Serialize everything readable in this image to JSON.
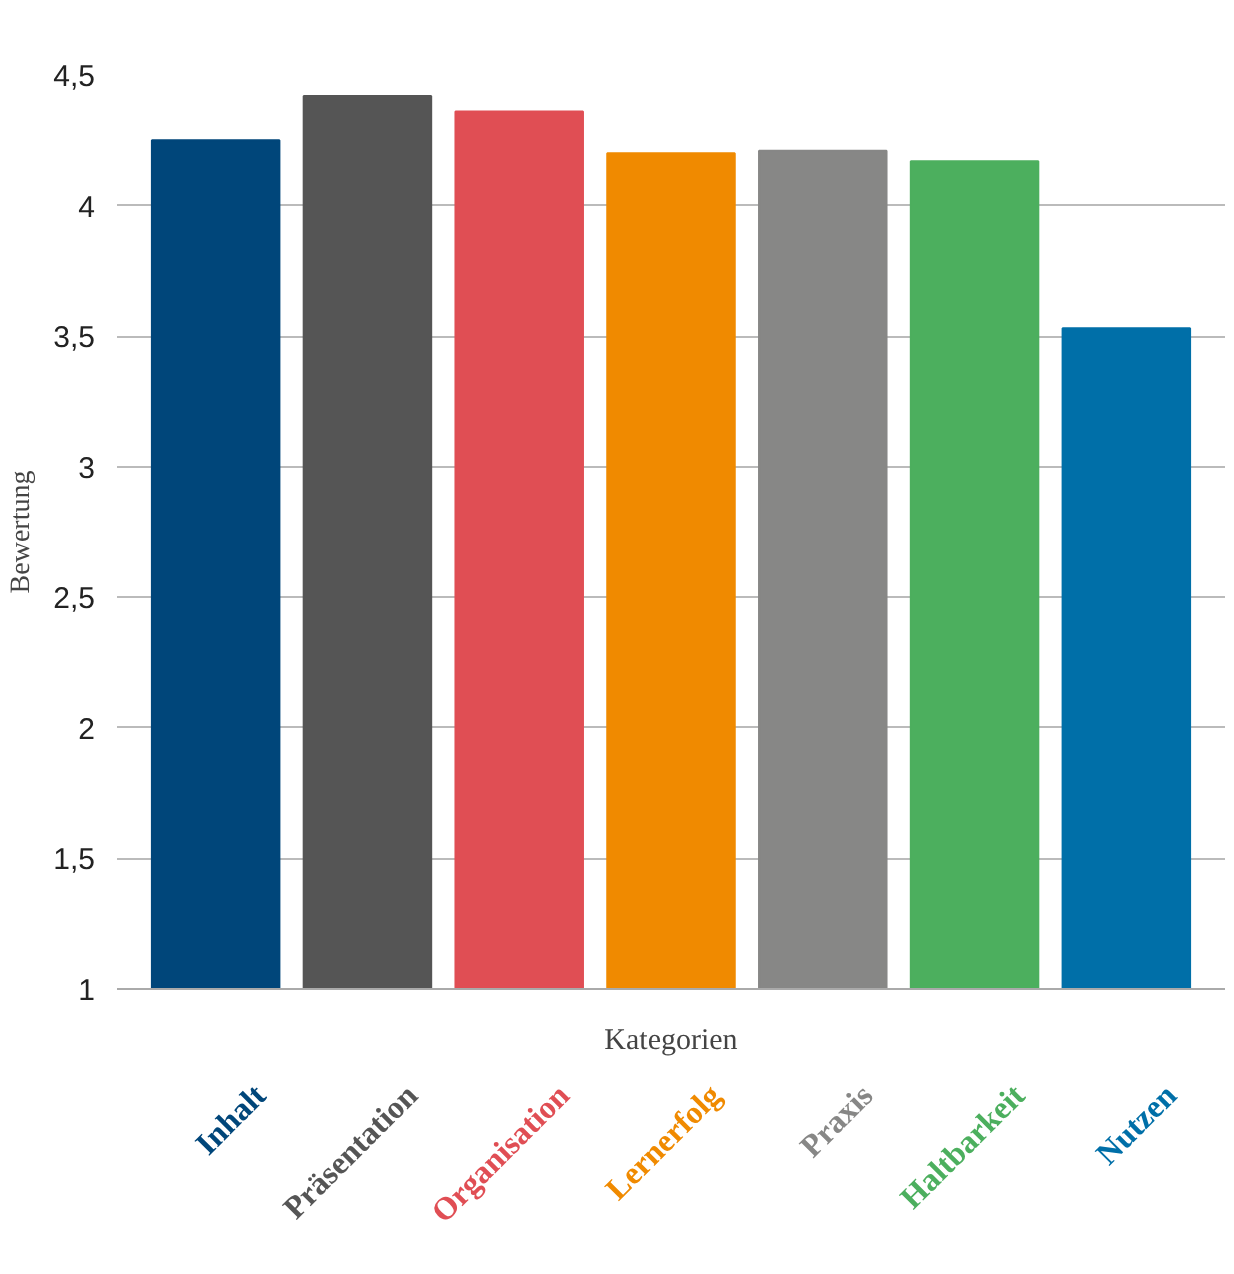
{
  "chart_data": {
    "type": "bar",
    "xlabel": "Kategorien",
    "ylabel": "Bewertung",
    "categories": [
      "Inhalt",
      "Präsentation",
      "Organisation",
      "Lernerfolg",
      "Praxis",
      "Haltbarkeit",
      "Nutzen"
    ],
    "values": [
      4.25,
      4.42,
      4.36,
      4.2,
      4.21,
      4.17,
      3.53
    ],
    "colors": [
      "#00467a",
      "#555555",
      "#e04e54",
      "#f08a00",
      "#878786",
      "#4caf5e",
      "#006fa8"
    ],
    "ylim": [
      1,
      4.5
    ],
    "yticks": [
      1,
      {
        "value": 1.5,
        "label": "1,5"
      },
      2,
      {
        "value": 2.5,
        "label": "2,5"
      },
      3,
      {
        "value": 3.5,
        "label": "3,5"
      },
      4,
      {
        "value": 4.5,
        "label": "4,5"
      }
    ],
    "grid": "y"
  }
}
